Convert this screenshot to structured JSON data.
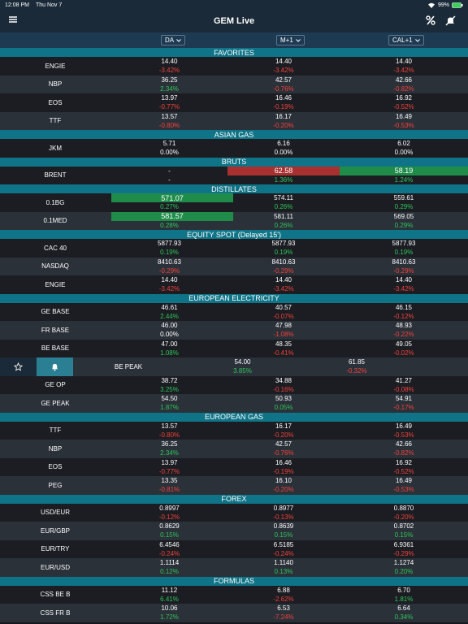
{
  "status_bar": {
    "time": "12:08 PM",
    "date": "Thu Nov 7",
    "battery": "99%"
  },
  "header": {
    "title": "GEM Live"
  },
  "columns": [
    "DA",
    "M+1",
    "CAL+1"
  ],
  "sections": [
    {
      "title": "FAVORITES",
      "rows": [
        {
          "label": "ENGIE",
          "cells": [
            {
              "price": "14.40",
              "change": "-3.42%"
            },
            {
              "price": "14.40",
              "change": "-3.42%"
            },
            {
              "price": "14.40",
              "change": "-3.42%"
            }
          ]
        },
        {
          "label": "NBP",
          "cells": [
            {
              "price": "36.25",
              "change": "2.34%"
            },
            {
              "price": "42.57",
              "change": "-0.76%"
            },
            {
              "price": "42.66",
              "change": "-0.82%"
            }
          ]
        },
        {
          "label": "EOS",
          "cells": [
            {
              "price": "13.97",
              "change": "-0.77%"
            },
            {
              "price": "16.46",
              "change": "-0.19%"
            },
            {
              "price": "16.92",
              "change": "-0.52%"
            }
          ]
        },
        {
          "label": "TTF",
          "cells": [
            {
              "price": "13.57",
              "change": "-0.80%"
            },
            {
              "price": "16.17",
              "change": "-0.20%"
            },
            {
              "price": "16.49",
              "change": "-0.53%"
            }
          ]
        }
      ]
    },
    {
      "title": "ASIAN GAS",
      "rows": [
        {
          "label": "JKM",
          "cells": [
            {
              "price": "5.71",
              "change": "0.00%"
            },
            {
              "price": "6.16",
              "change": "0.00%"
            },
            {
              "price": "6.02",
              "change": "0.00%"
            }
          ]
        }
      ]
    },
    {
      "title": "BRUTS",
      "rows": [
        {
          "label": "BRENT",
          "cells": [
            {
              "price": "-",
              "change": "-"
            },
            {
              "price": "62.58",
              "change": "1.36%",
              "highlight": "red"
            },
            {
              "price": "58.19",
              "change": "1.24%",
              "highlight": "green"
            }
          ]
        }
      ]
    },
    {
      "title": "DISTILLATES",
      "rows": [
        {
          "label": "0.1BG",
          "cells": [
            {
              "price": "571.07",
              "change": "0.27%",
              "highlight": "green"
            },
            {
              "price": "574.11",
              "change": "0.26%"
            },
            {
              "price": "559.61",
              "change": "0.29%"
            }
          ]
        },
        {
          "label": "0.1MED",
          "cells": [
            {
              "price": "581.57",
              "change": "0.28%",
              "highlight": "green"
            },
            {
              "price": "581.11",
              "change": "0.26%"
            },
            {
              "price": "569.05",
              "change": "0.29%"
            }
          ]
        }
      ]
    },
    {
      "title": "EQUITY SPOT (Delayed 15')",
      "rows": [
        {
          "label": "CAC 40",
          "cells": [
            {
              "price": "5877.93",
              "change": "0.19%"
            },
            {
              "price": "5877.93",
              "change": "0.19%"
            },
            {
              "price": "5877.93",
              "change": "0.19%"
            }
          ]
        },
        {
          "label": "NASDAQ",
          "cells": [
            {
              "price": "8410.63",
              "change": "-0.29%"
            },
            {
              "price": "8410.63",
              "change": "-0.29%"
            },
            {
              "price": "8410.63",
              "change": "-0.29%"
            }
          ]
        },
        {
          "label": "ENGIE",
          "cells": [
            {
              "price": "14.40",
              "change": "-3.42%"
            },
            {
              "price": "14.40",
              "change": "-3.42%"
            },
            {
              "price": "14.40",
              "change": "-3.42%"
            }
          ]
        }
      ]
    },
    {
      "title": "EUROPEAN ELECTRICITY",
      "rows": [
        {
          "label": "GE BASE",
          "cells": [
            {
              "price": "46.61",
              "change": "2.44%"
            },
            {
              "price": "40.57",
              "change": "-0.07%"
            },
            {
              "price": "46.15",
              "change": "-0.12%"
            }
          ]
        },
        {
          "label": "FR BASE",
          "cells": [
            {
              "price": "46.00",
              "change": "0.00%"
            },
            {
              "price": "47.98",
              "change": "-1.08%"
            },
            {
              "price": "48.93",
              "change": "-0.22%"
            }
          ]
        },
        {
          "label": "BE BASE",
          "cells": [
            {
              "price": "47.00",
              "change": "1.08%"
            },
            {
              "price": "48.35",
              "change": "-0.41%"
            },
            {
              "price": "49.05",
              "change": "-0.02%"
            }
          ]
        },
        {
          "label": "BE PEAK",
          "swiped": true,
          "cells": [
            {
              "price": "54.00",
              "change": "3.85%"
            },
            {
              "price": "61.85",
              "change": "-0.32%"
            }
          ]
        },
        {
          "label": "GE OP",
          "cells": [
            {
              "price": "38.72",
              "change": "3.25%"
            },
            {
              "price": "34.88",
              "change": "-0.16%"
            },
            {
              "price": "41.27",
              "change": "-0.08%"
            }
          ]
        },
        {
          "label": "GE PEAK",
          "cells": [
            {
              "price": "54.50",
              "change": "1.87%"
            },
            {
              "price": "50.93",
              "change": "0.05%"
            },
            {
              "price": "54.91",
              "change": "-0.17%"
            }
          ]
        }
      ]
    },
    {
      "title": "EUROPEAN GAS",
      "rows": [
        {
          "label": "TTF",
          "cells": [
            {
              "price": "13.57",
              "change": "-0.80%"
            },
            {
              "price": "16.17",
              "change": "-0.20%"
            },
            {
              "price": "16.49",
              "change": "-0.53%"
            }
          ]
        },
        {
          "label": "NBP",
          "cells": [
            {
              "price": "36.25",
              "change": "2.34%"
            },
            {
              "price": "42.57",
              "change": "-0.76%"
            },
            {
              "price": "42.66",
              "change": "-0.82%"
            }
          ]
        },
        {
          "label": "EOS",
          "cells": [
            {
              "price": "13.97",
              "change": "-0.77%"
            },
            {
              "price": "16.46",
              "change": "-0.19%"
            },
            {
              "price": "16.92",
              "change": "-0.52%"
            }
          ]
        },
        {
          "label": "PEG",
          "cells": [
            {
              "price": "13.35",
              "change": "-0.81%"
            },
            {
              "price": "16.10",
              "change": "-0.20%"
            },
            {
              "price": "16.49",
              "change": "-0.53%"
            }
          ]
        }
      ]
    },
    {
      "title": "FOREX",
      "rows": [
        {
          "label": "USD/EUR",
          "cells": [
            {
              "price": "0.8997",
              "change": "-0.12%"
            },
            {
              "price": "0.8977",
              "change": "-0.13%"
            },
            {
              "price": "0.8870",
              "change": "-0.20%"
            }
          ]
        },
        {
          "label": "EUR/GBP",
          "cells": [
            {
              "price": "0.8629",
              "change": "0.15%"
            },
            {
              "price": "0.8639",
              "change": "0.15%"
            },
            {
              "price": "0.8702",
              "change": "0.15%"
            }
          ]
        },
        {
          "label": "EUR/TRY",
          "cells": [
            {
              "price": "6.4546",
              "change": "-0.24%"
            },
            {
              "price": "6.5185",
              "change": "-0.24%"
            },
            {
              "price": "6.9361",
              "change": "-0.29%"
            }
          ]
        },
        {
          "label": "EUR/USD",
          "cells": [
            {
              "price": "1.1114",
              "change": "0.12%"
            },
            {
              "price": "1.1140",
              "change": "0.13%"
            },
            {
              "price": "1.1274",
              "change": "0.20%"
            }
          ]
        }
      ]
    },
    {
      "title": "FORMULAS",
      "rows": [
        {
          "label": "CSS BE B",
          "cells": [
            {
              "price": "11.12",
              "change": "6.41%"
            },
            {
              "price": "6.88",
              "change": "-2.62%"
            },
            {
              "price": "6.70",
              "change": "1.81%"
            }
          ]
        },
        {
          "label": "CSS FR B",
          "cells": [
            {
              "price": "10.06",
              "change": "1.72%"
            },
            {
              "price": "6.53",
              "change": "-7.24%"
            },
            {
              "price": "6.64",
              "change": "0.34%"
            }
          ]
        }
      ]
    }
  ]
}
